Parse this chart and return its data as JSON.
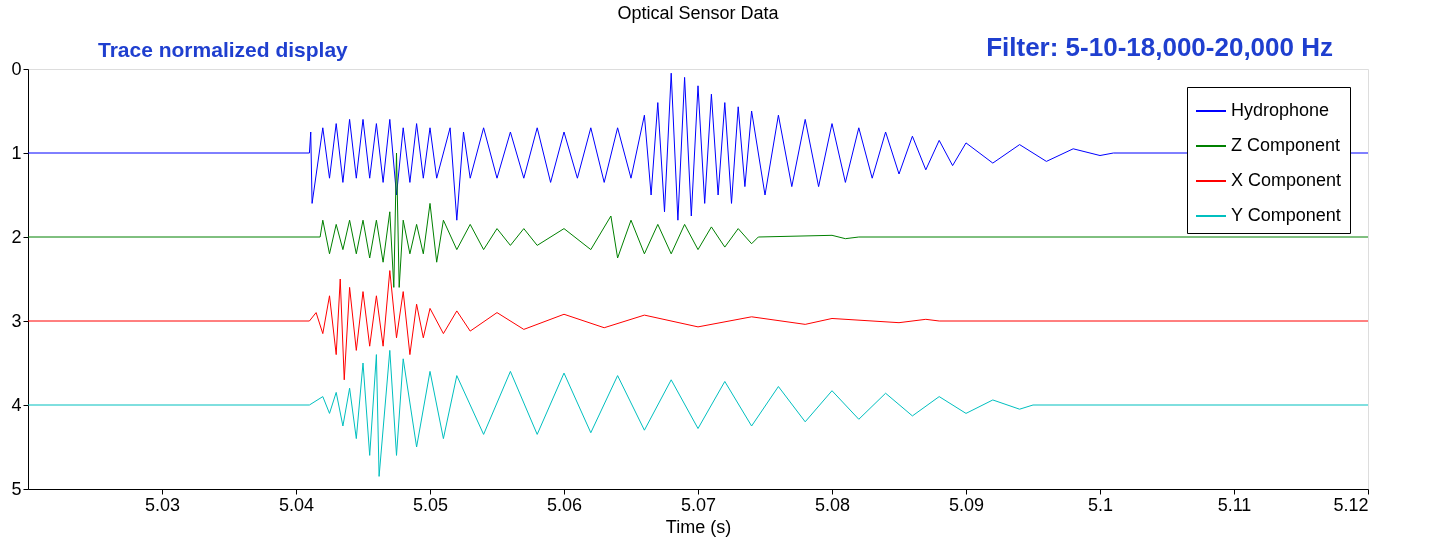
{
  "chart_data": {
    "type": "line",
    "title": "Optical Sensor Data",
    "xlabel": "Time (s)",
    "annotations": [
      "Trace normalized display",
      "Filter: 5-10-18,000-20,000 Hz"
    ],
    "xlim": [
      5.02,
      5.12
    ],
    "xticks": [
      5.03,
      5.04,
      5.05,
      5.06,
      5.07,
      5.08,
      5.09,
      5.1,
      5.11,
      5.12
    ],
    "ylim": [
      5,
      0
    ],
    "yticks": [
      0,
      1,
      2,
      3,
      4,
      5
    ],
    "grid": false,
    "legend": "top right",
    "marker": "none",
    "line_style": "solid",
    "series": [
      {
        "name": "Hydrophone",
        "color": "#0000ff",
        "x": [
          5.02,
          5.041,
          5.0411,
          5.0412,
          5.042,
          5.0425,
          5.043,
          5.0435,
          5.044,
          5.0445,
          5.045,
          5.0455,
          5.046,
          5.0465,
          5.047,
          5.0475,
          5.048,
          5.0485,
          5.049,
          5.0495,
          5.05,
          5.0505,
          5.0515,
          5.052,
          5.0525,
          5.053,
          5.054,
          5.055,
          5.056,
          5.057,
          5.058,
          5.059,
          5.06,
          5.061,
          5.062,
          5.063,
          5.064,
          5.065,
          5.066,
          5.0665,
          5.067,
          5.0675,
          5.068,
          5.0685,
          5.069,
          5.0695,
          5.07,
          5.0705,
          5.071,
          5.0715,
          5.072,
          5.0725,
          5.073,
          5.0735,
          5.074,
          5.075,
          5.076,
          5.077,
          5.078,
          5.079,
          5.08,
          5.081,
          5.082,
          5.083,
          5.084,
          5.085,
          5.086,
          5.087,
          5.088,
          5.089,
          5.09,
          5.092,
          5.094,
          5.096,
          5.098,
          5.1,
          5.101,
          5.12
        ],
        "values": [
          1,
          1,
          0.75,
          1.6,
          0.7,
          1.3,
          0.65,
          1.35,
          0.6,
          1.3,
          0.6,
          1.3,
          0.65,
          1.35,
          0.6,
          1.5,
          0.7,
          1.35,
          0.65,
          1.3,
          0.7,
          1.3,
          0.7,
          1.8,
          0.75,
          1.3,
          0.7,
          1.3,
          0.75,
          1.3,
          0.7,
          1.35,
          0.75,
          1.3,
          0.7,
          1.35,
          0.7,
          1.3,
          0.55,
          1.5,
          0.4,
          1.7,
          0.05,
          1.8,
          0.1,
          1.75,
          0.2,
          1.6,
          0.3,
          1.5,
          0.4,
          1.6,
          0.45,
          1.4,
          0.5,
          1.5,
          0.55,
          1.4,
          0.6,
          1.4,
          0.65,
          1.35,
          0.7,
          1.3,
          0.75,
          1.25,
          0.8,
          1.2,
          0.85,
          1.15,
          0.88,
          1.12,
          0.9,
          1.1,
          0.95,
          1.03,
          1,
          1
        ]
      },
      {
        "name": "Z Component",
        "color": "#008000",
        "x": [
          5.02,
          5.0418,
          5.042,
          5.0425,
          5.043,
          5.0435,
          5.044,
          5.0445,
          5.045,
          5.0455,
          5.046,
          5.0465,
          5.047,
          5.0473,
          5.0475,
          5.0477,
          5.048,
          5.0485,
          5.049,
          5.0495,
          5.05,
          5.0505,
          5.051,
          5.052,
          5.053,
          5.054,
          5.055,
          5.056,
          5.057,
          5.058,
          5.06,
          5.062,
          5.0635,
          5.064,
          5.065,
          5.066,
          5.067,
          5.068,
          5.069,
          5.07,
          5.071,
          5.072,
          5.073,
          5.074,
          5.0745,
          5.08,
          5.081,
          5.082,
          5.12
        ],
        "values": [
          2,
          2,
          1.8,
          2.2,
          1.85,
          2.15,
          1.8,
          2.2,
          1.8,
          2.25,
          1.8,
          2.3,
          1.7,
          2.6,
          1.0,
          2.6,
          1.8,
          2.2,
          1.85,
          2.2,
          1.6,
          2.3,
          1.8,
          2.15,
          1.85,
          2.15,
          1.9,
          2.1,
          1.9,
          2.1,
          1.9,
          2.15,
          1.75,
          2.25,
          1.8,
          2.2,
          1.85,
          2.2,
          1.85,
          2.15,
          1.88,
          2.12,
          1.9,
          2.08,
          2,
          1.98,
          2.02,
          2,
          2
        ]
      },
      {
        "name": "X Component",
        "color": "#ff0000",
        "x": [
          5.02,
          5.041,
          5.0415,
          5.042,
          5.0425,
          5.043,
          5.0433,
          5.0436,
          5.044,
          5.0445,
          5.045,
          5.0455,
          5.046,
          5.0465,
          5.047,
          5.0475,
          5.048,
          5.0485,
          5.049,
          5.0495,
          5.05,
          5.051,
          5.052,
          5.053,
          5.055,
          5.057,
          5.06,
          5.063,
          5.066,
          5.07,
          5.074,
          5.078,
          5.08,
          5.085,
          5.087,
          5.088,
          5.12
        ],
        "values": [
          3,
          3,
          2.9,
          3.15,
          2.7,
          3.4,
          2.5,
          3.7,
          2.6,
          3.35,
          2.65,
          3.3,
          2.7,
          3.3,
          2.4,
          3.2,
          2.65,
          3.4,
          2.8,
          3.2,
          2.85,
          3.15,
          2.88,
          3.12,
          2.9,
          3.1,
          2.92,
          3.08,
          2.93,
          3.07,
          2.95,
          3.04,
          2.97,
          3.02,
          2.98,
          3,
          3
        ]
      },
      {
        "name": "Y Component",
        "color": "#00bfbf",
        "x": [
          5.02,
          5.041,
          5.042,
          5.0425,
          5.043,
          5.0435,
          5.044,
          5.0445,
          5.045,
          5.0455,
          5.046,
          5.0462,
          5.047,
          5.0475,
          5.048,
          5.049,
          5.05,
          5.051,
          5.052,
          5.054,
          5.056,
          5.058,
          5.06,
          5.062,
          5.064,
          5.066,
          5.068,
          5.07,
          5.072,
          5.074,
          5.076,
          5.078,
          5.08,
          5.082,
          5.084,
          5.086,
          5.088,
          5.09,
          5.092,
          5.094,
          5.095,
          5.12
        ],
        "values": [
          4,
          4,
          3.9,
          4.1,
          3.85,
          4.25,
          3.8,
          4.4,
          3.5,
          4.6,
          3.4,
          4.85,
          3.35,
          4.6,
          3.45,
          4.5,
          3.6,
          4.4,
          3.65,
          4.35,
          3.6,
          4.35,
          3.62,
          4.33,
          3.65,
          4.3,
          3.7,
          4.28,
          3.72,
          4.25,
          3.78,
          4.2,
          3.83,
          4.17,
          3.86,
          4.13,
          3.9,
          4.1,
          3.94,
          4.05,
          4,
          4
        ]
      }
    ]
  }
}
